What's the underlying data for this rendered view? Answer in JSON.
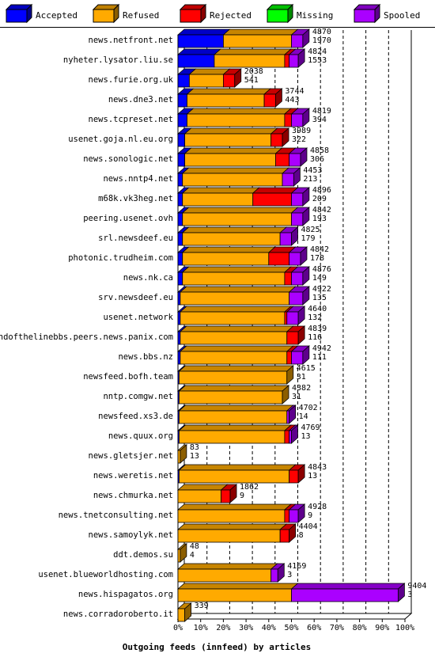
{
  "chart_data": {
    "type": "bar",
    "orientation": "horizontal",
    "stacked": true,
    "xlabel": "Outgoing feeds (innfeed) by articles",
    "xlim": [
      0,
      100
    ],
    "x_ticks": [
      "0%",
      "10%",
      "20%",
      "30%",
      "40%",
      "50%",
      "60%",
      "70%",
      "80%",
      "90%",
      "100%"
    ],
    "grid": "vertical dashed",
    "legend_position": "top",
    "series": [
      {
        "name": "Accepted",
        "color": "#0000ff"
      },
      {
        "name": "Refused",
        "color": "#ffaa00"
      },
      {
        "name": "Rejected",
        "color": "#ff0000"
      },
      {
        "name": "Missing",
        "color": "#00ff00"
      },
      {
        "name": "Spooled",
        "color": "#aa00ff"
      }
    ],
    "rows": [
      {
        "label": "news.netfront.net",
        "offered": 4870,
        "accepted": 1970,
        "pct": [
          20,
          30,
          0,
          0,
          5
        ]
      },
      {
        "label": "nyheter.lysator.liu.se",
        "offered": 4824,
        "accepted": 1553,
        "pct": [
          16,
          31,
          2,
          0,
          4
        ]
      },
      {
        "label": "news.furie.org.uk",
        "offered": 2038,
        "accepted": 541,
        "pct": [
          5,
          15,
          5,
          0,
          0
        ]
      },
      {
        "label": "news.dne3.net",
        "offered": 3744,
        "accepted": 443,
        "pct": [
          4,
          34,
          5,
          0,
          0
        ]
      },
      {
        "label": "news.tcpreset.net",
        "offered": 4819,
        "accepted": 394,
        "pct": [
          4,
          43,
          3,
          0,
          5
        ]
      },
      {
        "label": "usenet.goja.nl.eu.org",
        "offered": 3989,
        "accepted": 322,
        "pct": [
          3,
          38,
          5,
          0,
          0
        ]
      },
      {
        "label": "news.sonologic.net",
        "offered": 4858,
        "accepted": 306,
        "pct": [
          3,
          40,
          6,
          0,
          5
        ]
      },
      {
        "label": "news.nntp4.net",
        "offered": 4453,
        "accepted": 213,
        "pct": [
          2,
          44,
          0,
          0,
          5
        ]
      },
      {
        "label": "m68k.vk3heg.net",
        "offered": 4896,
        "accepted": 209,
        "pct": [
          2,
          31,
          17,
          0,
          5
        ]
      },
      {
        "label": "peering.usenet.ovh",
        "offered": 4842,
        "accepted": 193,
        "pct": [
          2,
          48,
          0,
          0,
          5
        ]
      },
      {
        "label": "srl.newsdeef.eu",
        "offered": 4825,
        "accepted": 179,
        "pct": [
          2,
          43,
          0,
          0,
          5
        ]
      },
      {
        "label": "photonic.trudheim.com",
        "offered": 4842,
        "accepted": 178,
        "pct": [
          2,
          38,
          9,
          0,
          5
        ]
      },
      {
        "label": "news.nk.ca",
        "offered": 4876,
        "accepted": 149,
        "pct": [
          2,
          45,
          3,
          0,
          5
        ]
      },
      {
        "label": "srv.newsdeef.eu",
        "offered": 4922,
        "accepted": 135,
        "pct": [
          1,
          48,
          0,
          0,
          6
        ]
      },
      {
        "label": "usenet.network",
        "offered": 4640,
        "accepted": 132,
        "pct": [
          1,
          46,
          1,
          0,
          5
        ]
      },
      {
        "label": "endofthelinebbs.peers.news.panix.com",
        "offered": 4839,
        "accepted": 116,
        "pct": [
          1,
          47,
          5,
          0,
          0
        ]
      },
      {
        "label": "news.bbs.nz",
        "offered": 4942,
        "accepted": 111,
        "pct": [
          1,
          47,
          2,
          0,
          5
        ]
      },
      {
        "label": "newsfeed.bofh.team",
        "offered": 4615,
        "accepted": 31,
        "pct": [
          0.5,
          47.5,
          0,
          0,
          0
        ]
      },
      {
        "label": "nntp.comgw.net",
        "offered": 4382,
        "accepted": 31,
        "pct": [
          0.5,
          45.5,
          0,
          0,
          0
        ]
      },
      {
        "label": "newsfeed.xs3.de",
        "offered": 4702,
        "accepted": 14,
        "pct": [
          0.5,
          47.5,
          0,
          0,
          1
        ]
      },
      {
        "label": "news.quux.org",
        "offered": 4769,
        "accepted": 13,
        "pct": [
          0.5,
          46.5,
          2,
          0,
          1
        ]
      },
      {
        "label": "news.gletsjer.net",
        "offered": 83,
        "accepted": 13,
        "pct": [
          0,
          1,
          0,
          0,
          0
        ]
      },
      {
        "label": "news.weretis.net",
        "offered": 4843,
        "accepted": 13,
        "pct": [
          0.5,
          48.5,
          4,
          0,
          0
        ]
      },
      {
        "label": "news.chmurka.net",
        "offered": 1862,
        "accepted": 9,
        "pct": [
          0,
          19,
          4,
          0,
          0
        ]
      },
      {
        "label": "news.tnetconsulting.net",
        "offered": 4928,
        "accepted": 9,
        "pct": [
          0,
          47,
          2,
          0,
          4
        ]
      },
      {
        "label": "news.samoylyk.net",
        "offered": 4404,
        "accepted": 8,
        "pct": [
          0,
          45,
          4,
          0,
          0
        ]
      },
      {
        "label": "ddt.demos.su",
        "offered": 48,
        "accepted": 4,
        "pct": [
          0,
          1,
          0,
          0,
          0
        ]
      },
      {
        "label": "usenet.blueworldhosting.com",
        "offered": 4169,
        "accepted": 3,
        "pct": [
          0,
          41,
          0,
          0,
          3
        ]
      },
      {
        "label": "news.hispagatos.org",
        "offered": 9404,
        "accepted": 3,
        "pct": [
          0,
          50,
          0,
          0,
          47
        ]
      },
      {
        "label": "news.corradoroberto.it",
        "offered": 339,
        "accepted": null,
        "pct": [
          0,
          3,
          0,
          0,
          0
        ]
      }
    ]
  }
}
